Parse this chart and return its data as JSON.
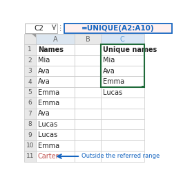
{
  "formula_box_text": "=UNIQUE(A2:A10)",
  "cell_ref": "C2",
  "col_A": [
    "Names",
    "Mia",
    "Ava",
    "Ava",
    "Emma",
    "Emma",
    "Ava",
    "Lucas",
    "Lucas",
    "Emma",
    "Carter"
  ],
  "col_C": [
    "Unique names",
    "Mia",
    "Ava",
    "Emma",
    "Lucas",
    "",
    "",
    "",
    "",
    "",
    ""
  ],
  "outside_text": "Outside the referred range",
  "bg_color": "#ffffff",
  "col_header_fill": "#e8e8e8",
  "row_header_fill": "#e8e8e8",
  "selected_col_fill": "#d9e6f5",
  "col_a_header_fill": "#dce6f0",
  "spill_border_color": "#1f6b3a",
  "formula_border_color": "#1565c0",
  "formula_bg": "#fff0ef",
  "arrow_color": "#1565c0",
  "outside_arrow_color": "#1565c0",
  "outside_text_color": "#1565c0",
  "carter_color": "#c0504d",
  "grid_color": "#c8c8c8",
  "col_labels": [
    "",
    "A",
    "B",
    "C"
  ],
  "n_rows": 11
}
